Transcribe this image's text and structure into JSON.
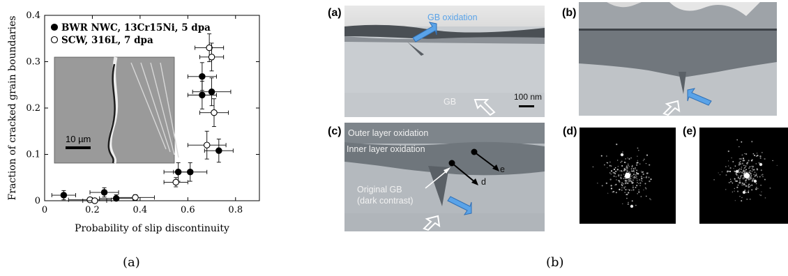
{
  "chart_data": {
    "type": "scatter",
    "xlabel": "Probability of slip discontinuity",
    "ylabel": "Fraction of cracked grain boundaries",
    "xlim": [
      0,
      0.9
    ],
    "ylim": [
      0,
      0.4
    ],
    "xticks": [
      "0",
      "0.2",
      "0.4",
      "0.6",
      "0.8"
    ],
    "yticks": [
      "0",
      "0.1",
      "0.2",
      "0.3",
      "0.4"
    ],
    "legend_position": "top-left",
    "inset_scale_label": "10 µm",
    "series": [
      {
        "name": "BWR NWC, 13Cr15Ni, 5 dpa",
        "marker": "filled-circle",
        "points": [
          {
            "x": 0.08,
            "y": 0.012,
            "xerr": 0.05,
            "yerr": 0.01
          },
          {
            "x": 0.25,
            "y": 0.018,
            "xerr": 0.06,
            "yerr": 0.01
          },
          {
            "x": 0.3,
            "y": 0.005,
            "xerr": 0.07,
            "yerr": 0.008
          },
          {
            "x": 0.56,
            "y": 0.062,
            "xerr": 0.06,
            "yerr": 0.02
          },
          {
            "x": 0.61,
            "y": 0.062,
            "xerr": 0.07,
            "yerr": 0.02
          },
          {
            "x": 0.73,
            "y": 0.108,
            "xerr": 0.06,
            "yerr": 0.025
          },
          {
            "x": 0.66,
            "y": 0.268,
            "xerr": 0.06,
            "yerr": 0.03
          },
          {
            "x": 0.66,
            "y": 0.228,
            "xerr": 0.06,
            "yerr": 0.03
          },
          {
            "x": 0.7,
            "y": 0.235,
            "xerr": 0.08,
            "yerr": 0.03
          }
        ]
      },
      {
        "name": "SCW, 316L, 7 dpa",
        "marker": "open-circle",
        "points": [
          {
            "x": 0.19,
            "y": 0.002,
            "xerr": 0.09,
            "yerr": 0.005
          },
          {
            "x": 0.21,
            "y": 0.0,
            "xerr": 0.05,
            "yerr": 0.005
          },
          {
            "x": 0.38,
            "y": 0.007,
            "xerr": 0.08,
            "yerr": 0.006
          },
          {
            "x": 0.55,
            "y": 0.04,
            "xerr": 0.05,
            "yerr": 0.01
          },
          {
            "x": 0.69,
            "y": 0.33,
            "xerr": 0.06,
            "yerr": 0.03
          },
          {
            "x": 0.7,
            "y": 0.31,
            "xerr": 0.05,
            "yerr": 0.03
          },
          {
            "x": 0.71,
            "y": 0.19,
            "xerr": 0.06,
            "yerr": 0.03
          },
          {
            "x": 0.68,
            "y": 0.12,
            "xerr": 0.08,
            "yerr": 0.03
          }
        ]
      }
    ]
  },
  "micrographs": {
    "panel_a": {
      "label": "(a)",
      "gb_oxidation": "GB oxidation",
      "gb": "GB",
      "scale": "100 nm"
    },
    "panel_b": {
      "label": "(b)"
    },
    "panel_c": {
      "label": "(c)",
      "outer": "Outer layer oxidation",
      "inner": "Inner layer oxidation",
      "orig_gb_1": "Original GB",
      "orig_gb_2": "(dark contrast)",
      "d": "d",
      "e": "e"
    },
    "panel_d": {
      "label": "(d)"
    },
    "panel_e": {
      "label": "(e)"
    }
  },
  "captions": {
    "left": "(a)",
    "right": "(b)"
  }
}
